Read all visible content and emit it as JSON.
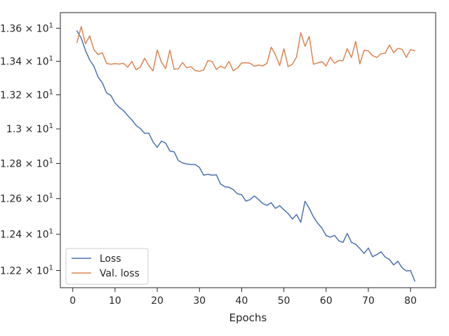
{
  "chart_data": {
    "type": "line",
    "title": "",
    "xlabel": "Epochs",
    "ylabel": "",
    "xlim": [
      -2.95,
      85.95
    ],
    "ylim": [
      12.1066,
      13.6955
    ],
    "yscale": "log",
    "grid": false,
    "legend_position": "lower-left",
    "x_ticks": [
      {
        "value": 0,
        "label": "0"
      },
      {
        "value": 10,
        "label": "10"
      },
      {
        "value": 20,
        "label": "20"
      },
      {
        "value": 30,
        "label": "30"
      },
      {
        "value": 40,
        "label": "40"
      },
      {
        "value": 50,
        "label": "50"
      },
      {
        "value": 60,
        "label": "60"
      },
      {
        "value": 70,
        "label": "70"
      },
      {
        "value": 80,
        "label": "80"
      }
    ],
    "y_ticks": [
      {
        "value": 12.2,
        "mantissa": "1.22",
        "exponent": "1"
      },
      {
        "value": 12.4,
        "mantissa": "1.24",
        "exponent": "1"
      },
      {
        "value": 12.6,
        "mantissa": "1.26",
        "exponent": "1"
      },
      {
        "value": 12.8,
        "mantissa": "1.28",
        "exponent": "1"
      },
      {
        "value": 13.0,
        "mantissa": "1.3",
        "exponent": "1"
      },
      {
        "value": 13.2,
        "mantissa": "1.32",
        "exponent": "1"
      },
      {
        "value": 13.4,
        "mantissa": "1.34",
        "exponent": "1"
      },
      {
        "value": 13.6,
        "mantissa": "1.36",
        "exponent": "1"
      }
    ],
    "x": [
      1,
      2,
      3,
      4,
      5,
      6,
      7,
      8,
      9,
      10,
      11,
      12,
      13,
      14,
      15,
      16,
      17,
      18,
      19,
      20,
      21,
      22,
      23,
      24,
      25,
      26,
      27,
      28,
      29,
      30,
      31,
      32,
      33,
      34,
      35,
      36,
      37,
      38,
      39,
      40,
      41,
      42,
      43,
      44,
      45,
      46,
      47,
      48,
      49,
      50,
      51,
      52,
      53,
      54,
      55,
      56,
      57,
      58,
      59,
      60,
      61,
      62,
      63,
      64,
      65,
      66,
      67,
      68,
      69,
      70,
      71,
      72,
      73,
      74,
      75,
      76,
      77,
      78,
      79,
      80,
      81
    ],
    "series": [
      {
        "name": "Loss",
        "color": "#4c72b0",
        "values": [
          13.583,
          13.54,
          13.465,
          13.408,
          13.37,
          13.305,
          13.271,
          13.211,
          13.197,
          13.152,
          13.126,
          13.107,
          13.078,
          13.052,
          13.02,
          13.002,
          12.974,
          12.975,
          12.924,
          12.893,
          12.929,
          12.917,
          12.871,
          12.867,
          12.817,
          12.803,
          12.797,
          12.794,
          12.794,
          12.777,
          12.733,
          12.738,
          12.733,
          12.735,
          12.683,
          12.667,
          12.664,
          12.651,
          12.627,
          12.622,
          12.586,
          12.594,
          12.615,
          12.595,
          12.572,
          12.562,
          12.577,
          12.545,
          12.56,
          12.537,
          12.516,
          12.485,
          12.51,
          12.467,
          12.585,
          12.545,
          12.497,
          12.462,
          12.435,
          12.393,
          12.384,
          12.394,
          12.364,
          12.355,
          12.405,
          12.355,
          12.345,
          12.321,
          12.294,
          12.324,
          12.276,
          12.287,
          12.303,
          12.274,
          12.261,
          12.231,
          12.251,
          12.215,
          12.198,
          12.2,
          12.143
        ]
      },
      {
        "name": "Val. loss",
        "color": "#dd8452",
        "values": [
          13.514,
          13.61,
          13.505,
          13.554,
          13.47,
          13.44,
          13.452,
          13.387,
          13.382,
          13.386,
          13.383,
          13.388,
          13.364,
          13.399,
          13.349,
          13.366,
          13.418,
          13.375,
          13.342,
          13.468,
          13.394,
          13.356,
          13.468,
          13.352,
          13.355,
          13.392,
          13.361,
          13.368,
          13.344,
          13.34,
          13.348,
          13.404,
          13.399,
          13.351,
          13.371,
          13.358,
          13.399,
          13.343,
          13.359,
          13.39,
          13.391,
          13.388,
          13.37,
          13.377,
          13.372,
          13.388,
          13.485,
          13.439,
          13.375,
          13.476,
          13.368,
          13.382,
          13.426,
          13.573,
          13.49,
          13.55,
          13.382,
          13.39,
          13.398,
          13.372,
          13.424,
          13.388,
          13.404,
          13.403,
          13.476,
          13.423,
          13.52,
          13.384,
          13.466,
          13.462,
          13.434,
          13.423,
          13.445,
          13.448,
          13.498,
          13.452,
          13.478,
          13.472,
          13.423,
          13.471,
          13.463
        ]
      }
    ]
  }
}
